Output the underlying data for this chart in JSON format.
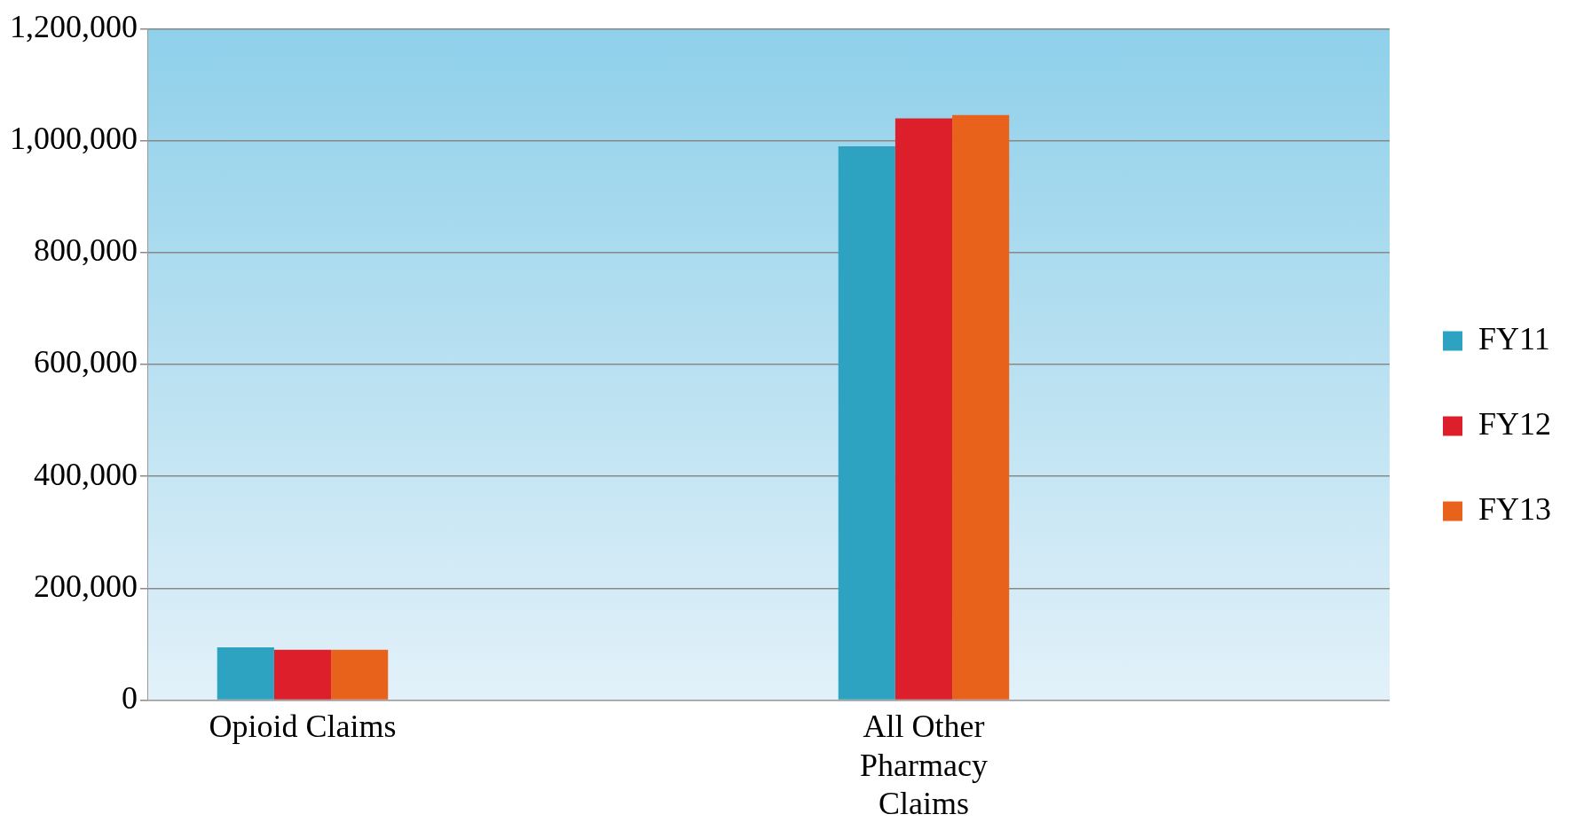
{
  "chart_data": {
    "type": "bar",
    "categories": [
      "Opioid Claims",
      null,
      "All Other Pharmacy Claims",
      null
    ],
    "series": [
      {
        "name": "FY11",
        "color": "#2ea3c1",
        "values": [
          94000,
          null,
          990000,
          null
        ]
      },
      {
        "name": "FY12",
        "color": "#dc1f2a",
        "values": [
          90000,
          null,
          1040000,
          null
        ]
      },
      {
        "name": "FY13",
        "color": "#e9621b",
        "values": [
          90000,
          null,
          1046000,
          null
        ]
      }
    ],
    "ylim": [
      0,
      1200000
    ],
    "yticks": [
      0,
      {
        "value": 200000,
        "label": "200,000"
      },
      {
        "value": 400000,
        "label": "400,000"
      },
      {
        "value": 600000,
        "label": "600,000"
      },
      {
        "value": 800000,
        "label": "800,000"
      },
      {
        "value": 1000000,
        "label": "1,000,000"
      },
      {
        "value": 1200000,
        "label": "1,200,000"
      }
    ],
    "grid": "y",
    "legend": "right"
  }
}
